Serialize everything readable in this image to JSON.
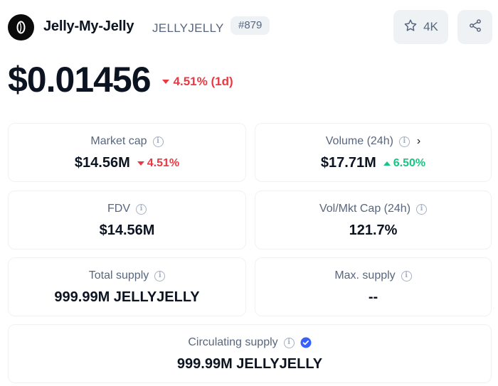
{
  "header": {
    "name": "Jelly-My-Jelly",
    "symbol": "JELLYJELLY",
    "rank": "#879",
    "watchlist_count": "4K",
    "logo_icon": "jelly-logo",
    "watch_icon": "star-icon",
    "share_icon": "share-icon"
  },
  "price": {
    "value": "$0.01456",
    "change": "4.51% (1d)",
    "direction": "down"
  },
  "stats": {
    "market_cap": {
      "label": "Market cap",
      "value": "$14.56M",
      "change": "4.51%",
      "direction": "down"
    },
    "volume": {
      "label": "Volume (24h)",
      "value": "$17.71M",
      "change": "6.50%",
      "direction": "up"
    },
    "fdv": {
      "label": "FDV",
      "value": "$14.56M"
    },
    "vol_mkt_cap": {
      "label": "Vol/Mkt Cap (24h)",
      "value": "121.7%"
    },
    "total_supply": {
      "label": "Total supply",
      "value": "999.99M JELLYJELLY"
    },
    "max_supply": {
      "label": "Max. supply",
      "value": "--"
    },
    "circulating_supply": {
      "label": "Circulating supply",
      "value": "999.99M JELLYJELLY",
      "verified": true
    }
  },
  "colors": {
    "down": "#ea3943",
    "up": "#16c784",
    "muted": "#58667e",
    "border": "#eff2f5",
    "verified": "#3861fb"
  }
}
